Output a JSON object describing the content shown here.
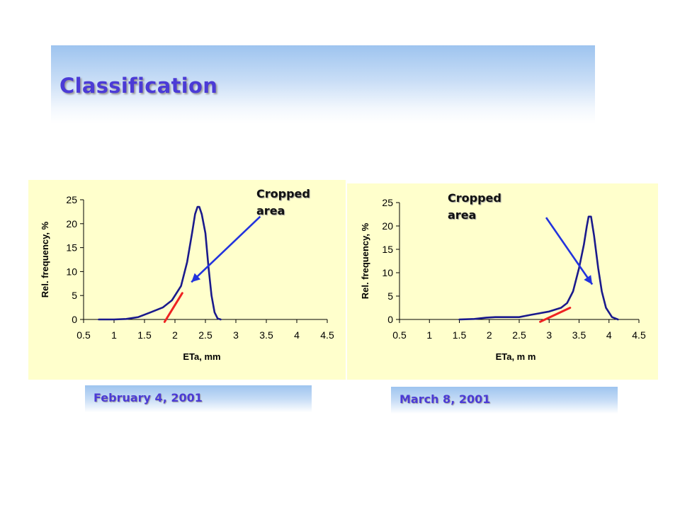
{
  "slide": {
    "title": "Classification"
  },
  "annotations": [
    {
      "line1": "Cropped",
      "line2": "area"
    },
    {
      "line1": "Cropped",
      "line2": "area"
    }
  ],
  "dates": [
    "February 4, 2001",
    "March 8, 2001"
  ],
  "colors": {
    "panel_bg": "#ffffcc",
    "curve": "#1a1a8c",
    "arrow": "#2233dd",
    "crop_line": "#ee2222",
    "title": "#4b3bd6"
  },
  "chart_data": [
    {
      "type": "line",
      "xlabel": "ETa, mm",
      "ylabel": "Rel. frequency, %",
      "xlim": [
        0.5,
        4.5
      ],
      "ylim": [
        0,
        25
      ],
      "xticks": [
        "0.5",
        "1",
        "1.5",
        "2",
        "2.5",
        "3",
        "3.5",
        "4",
        "4.5"
      ],
      "yticks": [
        "0",
        "5",
        "10",
        "15",
        "20",
        "25"
      ],
      "x": [
        0.75,
        1.0,
        1.2,
        1.4,
        1.6,
        1.8,
        1.95,
        2.1,
        2.2,
        2.28,
        2.33,
        2.37,
        2.4,
        2.44,
        2.5,
        2.55,
        2.6,
        2.65,
        2.7,
        2.75
      ],
      "y": [
        0,
        0,
        0.1,
        0.5,
        1.5,
        2.5,
        4.0,
        7.0,
        12.0,
        18.0,
        22.0,
        23.5,
        23.5,
        22.0,
        18.0,
        11.0,
        5.0,
        1.5,
        0.2,
        0
      ],
      "crop_line": {
        "x": [
          1.83,
          2.12
        ],
        "y": [
          -0.5,
          5.5
        ]
      },
      "arrow": {
        "from": [
          3.4,
          21.5
        ],
        "to": [
          2.27,
          7.8
        ]
      }
    },
    {
      "type": "line",
      "xlabel": "ETa, m m",
      "ylabel": "Rel. frequency, %",
      "xlim": [
        0.5,
        4.5
      ],
      "ylim": [
        0,
        25
      ],
      "xticks": [
        "0.5",
        "1",
        "1.5",
        "2",
        "2.5",
        "3",
        "3.5",
        "4",
        "4.5"
      ],
      "yticks": [
        "0",
        "5",
        "10",
        "15",
        "20",
        "25"
      ],
      "x": [
        1.5,
        1.75,
        1.95,
        2.1,
        2.5,
        2.7,
        3.0,
        3.2,
        3.3,
        3.4,
        3.5,
        3.58,
        3.63,
        3.66,
        3.7,
        3.75,
        3.82,
        3.88,
        3.95,
        4.05,
        4.15
      ],
      "y": [
        0,
        0.1,
        0.4,
        0.5,
        0.5,
        1.0,
        1.7,
        2.5,
        3.5,
        6.0,
        11.0,
        16.0,
        20.0,
        22.0,
        22.0,
        18.0,
        11.0,
        6.0,
        2.5,
        0.5,
        0
      ],
      "crop_line": {
        "x": [
          2.85,
          3.35
        ],
        "y": [
          -0.5,
          2.5
        ]
      },
      "arrow": {
        "from": [
          2.95,
          21.8
        ],
        "to": [
          3.72,
          7.5
        ]
      }
    }
  ]
}
